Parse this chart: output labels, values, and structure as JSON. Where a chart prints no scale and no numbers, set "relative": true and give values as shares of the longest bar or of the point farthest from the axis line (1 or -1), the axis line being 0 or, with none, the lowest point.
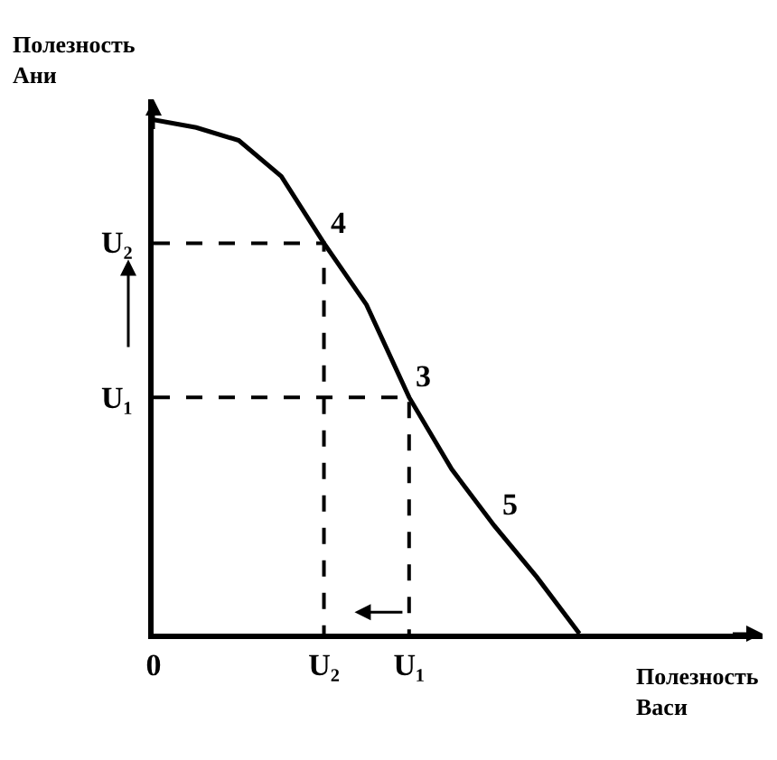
{
  "chart_data": {
    "type": "line",
    "xlabel": "Полезность\nВаси",
    "ylabel": "Полезность\nАни",
    "relative": true,
    "categories": [
      "0",
      null,
      null,
      null,
      "U₂",
      null,
      "U₁",
      null,
      null,
      null,
      null,
      null,
      null,
      null,
      null
    ],
    "series": [
      {
        "color": "#000000",
        "values": [
          1,
          0.985,
          0.96,
          0.89,
          0.76,
          0.64,
          0.46,
          0.32,
          0.21,
          0.11,
          0,
          null,
          null,
          null,
          null
        ]
      },
      {
        "color": "#000000",
        "line_style": "dashed",
        "x": [
          "0",
          "U₂",
          "U₂"
        ],
        "values": [
          0.76,
          0.76,
          0
        ]
      },
      {
        "color": "#000000",
        "line_style": "dashed",
        "x": [
          "0",
          "U₁",
          "U₁"
        ],
        "values": [
          0.46,
          0.46,
          0
        ]
      }
    ],
    "annotations": [
      {
        "text": "4",
        "x": "U₂",
        "y": 0.76
      },
      {
        "text": "3",
        "x": "U₁",
        "y": 0.46
      },
      "5",
      "U₁",
      "U₂"
    ],
    "marker": "none",
    "line_style": "solid"
  }
}
